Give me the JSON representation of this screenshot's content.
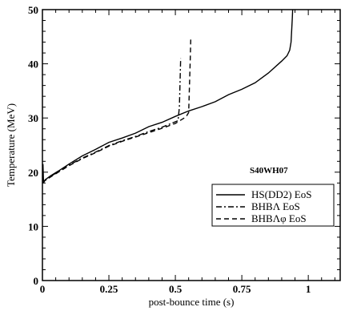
{
  "chart_data": {
    "type": "line",
    "title": "",
    "xlabel": "post-bounce time (s)",
    "ylabel": "Temperature (MeV)",
    "xlim": [
      0,
      1.12
    ],
    "ylim": [
      0,
      50
    ],
    "xticks": [
      {
        "value": 0,
        "label": "0"
      },
      {
        "value": 0.25,
        "label": "0.25"
      },
      {
        "value": 0.5,
        "label": "0.5"
      },
      {
        "value": 0.75,
        "label": "0.75"
      },
      {
        "value": 1,
        "label": "1"
      }
    ],
    "yticks": [
      {
        "value": 0,
        "label": "0"
      },
      {
        "value": 10,
        "label": "10"
      },
      {
        "value": 20,
        "label": "20"
      },
      {
        "value": 30,
        "label": "30"
      },
      {
        "value": 40,
        "label": "40"
      },
      {
        "value": 50,
        "label": "50"
      }
    ],
    "annotation": "S40WH07",
    "legend_position": "right",
    "grid": false,
    "series": [
      {
        "name": "HS(DD2) EoS",
        "dash": "solid",
        "x": [
          0,
          0.002,
          0.004,
          0.006,
          0.01,
          0.03,
          0.06,
          0.1,
          0.15,
          0.2,
          0.25,
          0.3,
          0.35,
          0.4,
          0.45,
          0.5,
          0.55,
          0.6,
          0.65,
          0.7,
          0.75,
          0.8,
          0.85,
          0.9,
          0.92,
          0.93,
          0.935,
          0.938,
          0.94,
          0.942
        ],
        "y": [
          18.0,
          21.5,
          18.5,
          18.2,
          18.6,
          19.3,
          20.2,
          21.5,
          23.0,
          24.2,
          25.5,
          26.3,
          27.2,
          28.4,
          29.2,
          30.3,
          31.3,
          32.1,
          33.0,
          34.3,
          35.3,
          36.5,
          38.3,
          40.5,
          41.5,
          42.5,
          44.0,
          46.5,
          48.5,
          51.0
        ]
      },
      {
        "name": "BHBΛ EoS",
        "dash": "dashdot",
        "x": [
          0,
          0.005,
          0.03,
          0.06,
          0.1,
          0.15,
          0.2,
          0.25,
          0.3,
          0.35,
          0.4,
          0.45,
          0.5,
          0.51,
          0.515,
          0.518,
          0.52
        ],
        "y": [
          18.0,
          18.3,
          19.2,
          20.1,
          21.3,
          22.6,
          23.7,
          24.9,
          25.8,
          26.6,
          27.5,
          28.3,
          29.3,
          29.5,
          32.0,
          37.0,
          41.0
        ]
      },
      {
        "name": "BHBΛφ EoS",
        "dash": "dashed",
        "x": [
          0,
          0.005,
          0.03,
          0.06,
          0.1,
          0.15,
          0.2,
          0.25,
          0.3,
          0.35,
          0.4,
          0.45,
          0.5,
          0.54,
          0.55,
          0.553,
          0.556,
          0.558
        ],
        "y": [
          18.0,
          18.3,
          19.1,
          20.0,
          21.2,
          22.5,
          23.6,
          24.8,
          25.7,
          26.5,
          27.3,
          28.1,
          29.0,
          30.2,
          31.0,
          36.0,
          41.0,
          44.5
        ]
      }
    ]
  }
}
